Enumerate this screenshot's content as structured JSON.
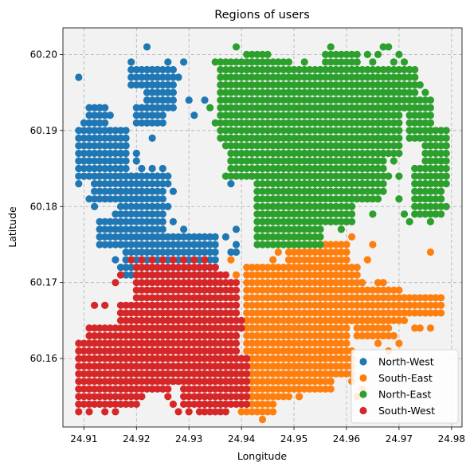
{
  "chart_data": {
    "type": "scatter",
    "title": "Regions of users",
    "xlabel": "Longitude",
    "ylabel": "Latitude",
    "xlim": [
      24.906,
      24.982
    ],
    "ylim": [
      60.151,
      60.2035
    ],
    "xticks": [
      24.91,
      24.92,
      24.93,
      24.94,
      24.95,
      24.96,
      24.97,
      24.98
    ],
    "yticks": [
      60.16,
      60.17,
      60.18,
      60.19,
      60.2
    ],
    "xtick_labels": [
      "24.91",
      "24.92",
      "24.93",
      "24.94",
      "24.95",
      "24.96",
      "24.97",
      "24.98"
    ],
    "ytick_labels": [
      "60.16",
      "60.17",
      "60.18",
      "60.19",
      "60.20"
    ],
    "grid": true,
    "legend_position": "lower-right",
    "point_spacing": [
      0.001,
      0.001
    ],
    "series": [
      {
        "name": "North-West",
        "color": "#1f77b4",
        "rects": [
          [
            24.909,
            24.918,
            60.184,
            60.19
          ],
          [
            24.911,
            24.914,
            60.19,
            60.193
          ],
          [
            24.912,
            24.921,
            60.181,
            60.184
          ],
          [
            24.917,
            24.925,
            60.176,
            60.184
          ],
          [
            24.913,
            24.917,
            60.175,
            60.178
          ],
          [
            24.918,
            24.935,
            60.171,
            60.176
          ],
          [
            24.922,
            24.927,
            60.193,
            60.198
          ],
          [
            24.92,
            24.925,
            60.191,
            60.193
          ],
          [
            24.919,
            24.924,
            60.196,
            60.198
          ]
        ],
        "points": [
          [
            24.909,
            60.197
          ],
          [
            24.919,
            60.199
          ],
          [
            24.922,
            60.201
          ],
          [
            24.929,
            60.199
          ],
          [
            24.93,
            60.194
          ],
          [
            24.933,
            60.194
          ],
          [
            24.931,
            60.192
          ],
          [
            24.926,
            60.196
          ],
          [
            24.928,
            60.197
          ],
          [
            24.926,
            60.199
          ],
          [
            24.922,
            60.191
          ],
          [
            24.923,
            60.189
          ],
          [
            24.917,
            60.187
          ],
          [
            24.918,
            60.188
          ],
          [
            24.92,
            60.187
          ],
          [
            24.92,
            60.186
          ],
          [
            24.921,
            60.185
          ],
          [
            24.926,
            60.184
          ],
          [
            24.926,
            60.183
          ],
          [
            24.927,
            60.182
          ],
          [
            24.923,
            60.185
          ],
          [
            24.924,
            60.184
          ],
          [
            24.925,
            60.185
          ],
          [
            24.911,
            60.181
          ],
          [
            24.912,
            60.18
          ],
          [
            24.91,
            60.186
          ],
          [
            24.909,
            60.183
          ],
          [
            24.926,
            60.18
          ],
          [
            24.927,
            60.178
          ],
          [
            24.927,
            60.176
          ],
          [
            24.928,
            60.175
          ],
          [
            24.929,
            60.177
          ],
          [
            24.93,
            60.176
          ],
          [
            24.93,
            60.174
          ],
          [
            24.931,
            60.175
          ],
          [
            24.916,
            60.179
          ],
          [
            24.916,
            60.177
          ],
          [
            24.917,
            60.175
          ],
          [
            24.916,
            60.173
          ],
          [
            24.917,
            60.172
          ],
          [
            24.935,
            60.17
          ],
          [
            24.938,
            60.183
          ],
          [
            24.937,
            60.176
          ],
          [
            24.939,
            60.175
          ],
          [
            24.939,
            60.177
          ],
          [
            24.938,
            60.174
          ],
          [
            24.939,
            60.174
          ],
          [
            24.91,
            60.191
          ],
          [
            24.913,
            60.193
          ],
          [
            24.915,
            60.192
          ],
          [
            24.924,
            60.196
          ],
          [
            24.925,
            60.194
          ]
        ]
      },
      {
        "name": "South-East",
        "color": "#ff7f0e",
        "rects": [
          [
            24.941,
            24.949,
            60.155,
            60.172
          ],
          [
            24.949,
            24.955,
            60.158,
            60.172
          ],
          [
            24.955,
            24.96,
            60.161,
            60.175
          ],
          [
            24.949,
            24.955,
            60.172,
            60.176
          ],
          [
            24.955,
            24.962,
            60.165,
            60.172
          ],
          [
            24.962,
            24.97,
            60.165,
            60.169
          ],
          [
            24.962,
            24.968,
            60.163,
            60.165
          ],
          [
            24.97,
            24.978,
            60.166,
            60.168
          ],
          [
            24.955,
            24.961,
            60.158,
            60.161
          ],
          [
            24.949,
            24.957,
            60.156,
            60.158
          ],
          [
            24.94,
            24.946,
            60.153,
            60.155
          ]
        ],
        "points": [
          [
            24.938,
            60.173
          ],
          [
            24.939,
            60.171
          ],
          [
            24.939,
            60.167
          ],
          [
            24.944,
            60.152
          ],
          [
            24.946,
            60.173
          ],
          [
            24.947,
            60.174
          ],
          [
            24.953,
            60.174
          ],
          [
            24.96,
            60.178
          ],
          [
            24.961,
            60.176
          ],
          [
            24.964,
            60.173
          ],
          [
            24.965,
            60.175
          ],
          [
            24.961,
            60.171
          ],
          [
            24.963,
            60.17
          ],
          [
            24.966,
            60.17
          ],
          [
            24.967,
            60.17
          ],
          [
            24.97,
            60.166
          ],
          [
            24.971,
            60.165
          ],
          [
            24.973,
            60.164
          ],
          [
            24.974,
            60.164
          ],
          [
            24.976,
            60.164
          ],
          [
            24.977,
            60.168
          ],
          [
            24.976,
            60.174
          ],
          [
            24.972,
            60.167
          ],
          [
            24.969,
            60.163
          ],
          [
            24.97,
            60.162
          ],
          [
            24.968,
            60.161
          ],
          [
            24.966,
            60.162
          ],
          [
            24.965,
            60.163
          ],
          [
            24.963,
            60.156
          ],
          [
            24.962,
            60.155
          ],
          [
            24.961,
            60.157
          ],
          [
            24.956,
            60.16
          ],
          [
            24.957,
            60.157
          ],
          [
            24.951,
            60.155
          ],
          [
            24.951,
            60.156
          ],
          [
            24.95,
            60.16
          ],
          [
            24.955,
            60.158
          ],
          [
            24.954,
            60.157
          ],
          [
            24.952,
            60.16
          ],
          [
            24.951,
            60.155
          ]
        ]
      },
      {
        "name": "North-East",
        "color": "#2ca02c",
        "rects": [
          [
            24.943,
            24.955,
            60.175,
            60.185
          ],
          [
            24.946,
            24.961,
            60.178,
            60.188
          ],
          [
            24.949,
            24.967,
            60.183,
            60.198
          ],
          [
            24.956,
            24.962,
            60.198,
            60.2
          ],
          [
            24.936,
            24.949,
            60.189,
            60.199
          ],
          [
            24.941,
            24.945,
            60.198,
            60.2
          ],
          [
            24.938,
            24.949,
            60.184,
            60.189
          ],
          [
            24.966,
            24.97,
            60.187,
            60.196
          ],
          [
            24.968,
            24.973,
            60.193,
            60.198
          ],
          [
            24.972,
            24.976,
            60.189,
            60.194
          ],
          [
            24.973,
            24.978,
            60.179,
            60.185
          ],
          [
            24.975,
            24.979,
            60.183,
            60.19
          ],
          [
            24.961,
            24.966,
            60.181,
            60.186
          ]
        ],
        "points": [
          [
            24.935,
            60.199
          ],
          [
            24.936,
            60.199
          ],
          [
            24.939,
            60.201
          ],
          [
            24.952,
            60.199
          ],
          [
            24.955,
            60.198
          ],
          [
            24.957,
            60.201
          ],
          [
            24.962,
            60.199
          ],
          [
            24.964,
            60.2
          ],
          [
            24.965,
            60.199
          ],
          [
            24.966,
            60.2
          ],
          [
            24.967,
            60.201
          ],
          [
            24.968,
            60.201
          ],
          [
            24.969,
            60.199
          ],
          [
            24.97,
            60.2
          ],
          [
            24.971,
            60.199
          ],
          [
            24.972,
            60.198
          ],
          [
            24.973,
            60.197
          ],
          [
            24.974,
            60.196
          ],
          [
            24.975,
            60.195
          ],
          [
            24.976,
            60.191
          ],
          [
            24.976,
            60.188
          ],
          [
            24.977,
            60.187
          ],
          [
            24.978,
            60.186
          ],
          [
            24.979,
            60.188
          ],
          [
            24.979,
            60.184
          ],
          [
            24.978,
            60.181
          ],
          [
            24.979,
            60.18
          ],
          [
            24.977,
            60.179
          ],
          [
            24.976,
            60.178
          ],
          [
            24.972,
            60.178
          ],
          [
            24.971,
            60.179
          ],
          [
            24.97,
            60.181
          ],
          [
            24.968,
            60.184
          ],
          [
            24.967,
            60.182
          ],
          [
            24.966,
            60.186
          ],
          [
            24.969,
            60.186
          ],
          [
            24.97,
            60.184
          ],
          [
            24.937,
            60.184
          ],
          [
            24.938,
            60.186
          ],
          [
            24.937,
            60.188
          ],
          [
            24.935,
            60.191
          ],
          [
            24.934,
            60.193
          ],
          [
            24.938,
            60.19
          ],
          [
            24.94,
            60.185
          ],
          [
            24.941,
            60.186
          ],
          [
            24.942,
            60.184
          ],
          [
            24.943,
            60.181
          ],
          [
            24.944,
            60.178
          ],
          [
            24.945,
            60.176
          ],
          [
            24.96,
            60.178
          ],
          [
            24.959,
            60.177
          ],
          [
            24.957,
            60.178
          ],
          [
            24.955,
            60.177
          ],
          [
            24.953,
            60.178
          ],
          [
            24.952,
            60.177
          ],
          [
            24.948,
            60.177
          ],
          [
            24.963,
            60.183
          ],
          [
            24.964,
            60.181
          ],
          [
            24.965,
            60.179
          ],
          [
            24.961,
            60.18
          ]
        ]
      },
      {
        "name": "South-West",
        "color": "#d62728",
        "rects": [
          [
            24.909,
            24.92,
            60.154,
            60.162
          ],
          [
            24.911,
            24.916,
            60.162,
            60.164
          ],
          [
            24.917,
            24.926,
            60.156,
            60.167
          ],
          [
            24.92,
            24.935,
            60.161,
            60.172
          ],
          [
            24.922,
            24.939,
            60.157,
            60.163
          ],
          [
            24.929,
            24.941,
            60.154,
            60.16
          ],
          [
            24.925,
            24.939,
            60.163,
            60.17
          ],
          [
            24.932,
            24.937,
            60.153,
            60.155
          ]
        ],
        "points": [
          [
            24.912,
            60.167
          ],
          [
            24.914,
            60.167
          ],
          [
            24.914,
            60.153
          ],
          [
            24.909,
            60.153
          ],
          [
            24.911,
            60.153
          ],
          [
            24.916,
            60.153
          ],
          [
            24.918,
            60.155
          ],
          [
            24.92,
            60.155
          ],
          [
            24.919,
            60.164
          ],
          [
            24.918,
            60.165
          ],
          [
            24.917,
            60.166
          ],
          [
            24.921,
            60.155
          ],
          [
            24.923,
            60.156
          ],
          [
            24.925,
            60.156
          ],
          [
            24.926,
            60.155
          ],
          [
            24.927,
            60.154
          ],
          [
            24.928,
            60.153
          ],
          [
            24.93,
            60.153
          ],
          [
            24.935,
            60.172
          ],
          [
            24.936,
            60.171
          ],
          [
            24.937,
            60.171
          ],
          [
            24.938,
            60.169
          ],
          [
            24.939,
            60.168
          ],
          [
            24.939,
            60.166
          ],
          [
            24.94,
            60.165
          ],
          [
            24.94,
            60.164
          ],
          [
            24.933,
            60.173
          ],
          [
            24.931,
            60.173
          ],
          [
            24.929,
            60.173
          ],
          [
            24.927,
            60.173
          ],
          [
            24.925,
            60.173
          ],
          [
            24.923,
            60.173
          ],
          [
            24.921,
            60.173
          ],
          [
            24.919,
            60.173
          ],
          [
            24.917,
            60.171
          ],
          [
            24.916,
            60.17
          ]
        ]
      }
    ]
  }
}
